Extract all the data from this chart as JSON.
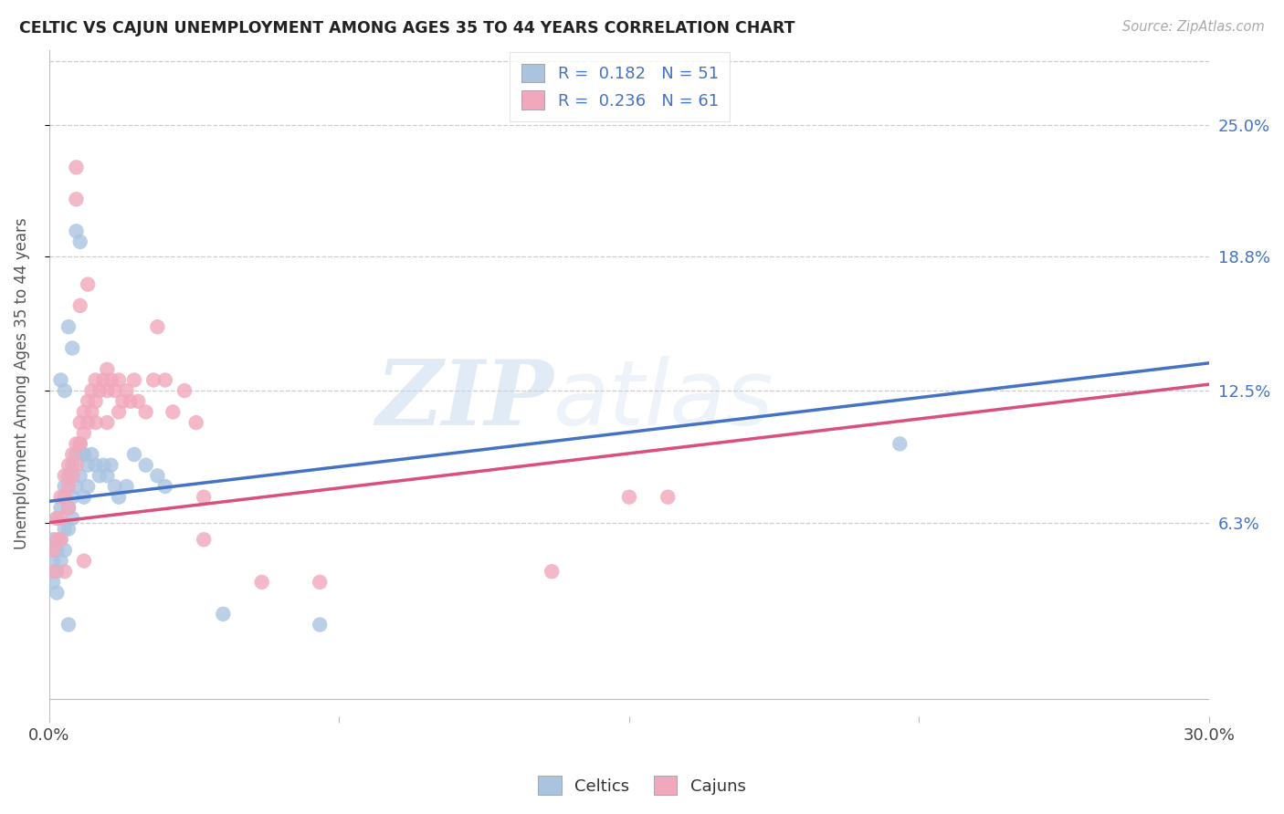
{
  "title": "CELTIC VS CAJUN UNEMPLOYMENT AMONG AGES 35 TO 44 YEARS CORRELATION CHART",
  "source": "Source: ZipAtlas.com",
  "ylabel": "Unemployment Among Ages 35 to 44 years",
  "xmin": 0.0,
  "xmax": 0.3,
  "ymin": -0.028,
  "ymax": 0.285,
  "ytick_vals": [
    0.063,
    0.125,
    0.188,
    0.25
  ],
  "ytick_labels": [
    "6.3%",
    "12.5%",
    "18.8%",
    "25.0%"
  ],
  "grid_color": "#cccccc",
  "bg_color": "#ffffff",
  "celtic_fill": "#aac4e0",
  "cajun_fill": "#f2a8bc",
  "celtic_line": "#4472c4",
  "cajun_line": "#d9507a",
  "celtic_R": 0.182,
  "celtic_N": 51,
  "cajun_R": 0.236,
  "cajun_N": 61,
  "celtic_x": [
    0.001,
    0.001,
    0.001,
    0.002,
    0.002,
    0.002,
    0.002,
    0.003,
    0.003,
    0.003,
    0.004,
    0.004,
    0.004,
    0.005,
    0.005,
    0.005,
    0.006,
    0.006,
    0.006,
    0.007,
    0.007,
    0.008,
    0.008,
    0.009,
    0.009,
    0.01,
    0.01,
    0.011,
    0.012,
    0.013,
    0.014,
    0.015,
    0.016,
    0.017,
    0.018,
    0.02,
    0.022,
    0.025,
    0.028,
    0.03,
    0.003,
    0.004,
    0.005,
    0.006,
    0.007,
    0.008,
    0.009,
    0.045,
    0.07,
    0.22,
    0.005
  ],
  "celtic_y": [
    0.055,
    0.045,
    0.035,
    0.065,
    0.05,
    0.04,
    0.03,
    0.07,
    0.055,
    0.045,
    0.08,
    0.06,
    0.05,
    0.085,
    0.07,
    0.06,
    0.09,
    0.075,
    0.065,
    0.095,
    0.08,
    0.1,
    0.085,
    0.095,
    0.075,
    0.09,
    0.08,
    0.095,
    0.09,
    0.085,
    0.09,
    0.085,
    0.09,
    0.08,
    0.075,
    0.08,
    0.095,
    0.09,
    0.085,
    0.08,
    0.13,
    0.125,
    0.155,
    0.145,
    0.2,
    0.195,
    0.095,
    0.02,
    0.015,
    0.1,
    0.015
  ],
  "cajun_x": [
    0.001,
    0.001,
    0.002,
    0.002,
    0.003,
    0.003,
    0.003,
    0.004,
    0.004,
    0.005,
    0.005,
    0.005,
    0.006,
    0.006,
    0.007,
    0.007,
    0.008,
    0.008,
    0.009,
    0.009,
    0.01,
    0.01,
    0.011,
    0.011,
    0.012,
    0.012,
    0.013,
    0.014,
    0.015,
    0.015,
    0.016,
    0.017,
    0.018,
    0.019,
    0.02,
    0.021,
    0.022,
    0.023,
    0.025,
    0.027,
    0.028,
    0.03,
    0.032,
    0.035,
    0.038,
    0.04,
    0.012,
    0.015,
    0.018,
    0.007,
    0.007,
    0.008,
    0.009,
    0.01,
    0.13,
    0.15,
    0.04,
    0.055,
    0.07,
    0.16,
    0.004
  ],
  "cajun_y": [
    0.05,
    0.04,
    0.065,
    0.055,
    0.075,
    0.065,
    0.055,
    0.085,
    0.075,
    0.09,
    0.08,
    0.07,
    0.095,
    0.085,
    0.1,
    0.09,
    0.11,
    0.1,
    0.115,
    0.105,
    0.12,
    0.11,
    0.125,
    0.115,
    0.13,
    0.12,
    0.125,
    0.13,
    0.135,
    0.11,
    0.13,
    0.125,
    0.13,
    0.12,
    0.125,
    0.12,
    0.13,
    0.12,
    0.115,
    0.13,
    0.155,
    0.13,
    0.115,
    0.125,
    0.11,
    0.055,
    0.11,
    0.125,
    0.115,
    0.23,
    0.215,
    0.165,
    0.045,
    0.175,
    0.04,
    0.075,
    0.075,
    0.035,
    0.035,
    0.075,
    0.04
  ],
  "celtic_line_x0": 0.0,
  "celtic_line_x1": 0.3,
  "celtic_line_y0": 0.073,
  "celtic_line_y1": 0.138,
  "cajun_line_x0": 0.0,
  "cajun_line_x1": 0.3,
  "cajun_line_y0": 0.063,
  "cajun_line_y1": 0.128
}
